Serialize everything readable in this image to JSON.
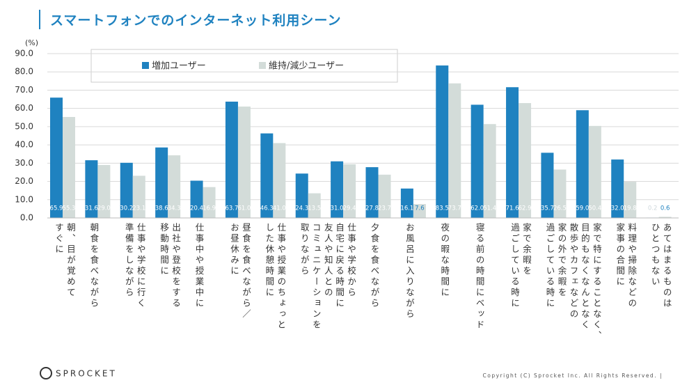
{
  "header": {
    "title": "スマートフォンでのインターネット利用シーン"
  },
  "chart_data": {
    "type": "bar",
    "y_label": "(%)",
    "grid": true,
    "categories": [
      "朝、目が覚めて\nすぐに",
      "朝食を食べながら",
      "仕事や学校に行く\n準備をしながら",
      "出社や登校をする\n移動時間に",
      "仕事中や授業中に",
      "昼食を食べながら／\nお昼休みに",
      "仕事や授業のちょっと\nした休憩時間に",
      "友人や知人との\nコミュニケーションを\n取りながら",
      "仕事や学校から\n自宅に戻る時間に",
      "夕食を食べながら",
      "お風呂に入りながら",
      "夜の暇な時間に",
      "寝る前の時間にベッド",
      "家で余暇を\n過ごしている時に",
      "散歩やカフェなどの\n家の外で余暇を\n過ごしている時に",
      "家で特にすることなく、\n目的もなくなんとなく",
      "料理や掃除などの\n家事の合間に",
      "あてはまるものは\nひとつもない"
    ],
    "series": [
      {
        "name": "増加ユーザー",
        "color": "#1f82c0",
        "values": [
          65.9,
          31.6,
          30.2,
          38.6,
          20.4,
          63.7,
          46.3,
          24.3,
          31.0,
          27.8,
          16.1,
          83.5,
          62.0,
          71.6,
          35.7,
          59.0,
          32.0,
          0.2
        ],
        "value_labels": [
          "65.9",
          "31.6",
          "30.2",
          "38.6",
          "20.4",
          "63.7",
          "46.3",
          "24.3",
          "31.0",
          "27.8",
          "16.1",
          "83.5",
          "62.0",
          "71.6",
          "35.7",
          "59.0",
          "32.0",
          "0.2"
        ]
      },
      {
        "name": "維持/減少ユーザー",
        "color": "#d3dcd9",
        "values": [
          55.3,
          29.0,
          23.1,
          34.3,
          16.9,
          61.0,
          41.0,
          13.5,
          29.4,
          23.7,
          7.6,
          73.7,
          51.4,
          62.9,
          26.5,
          50.4,
          19.8,
          0.6
        ],
        "value_labels": [
          "55.3",
          "29.0",
          "23.1",
          "34.3",
          "16.9",
          "61.0",
          "41.0",
          "13.5",
          "29.4",
          "23.7",
          "7.6",
          "73.7",
          "51.4",
          "62.9",
          "26.5",
          "50.4",
          "19.8",
          "0.6"
        ]
      }
    ],
    "ylim": [
      0,
      90
    ],
    "yticks": [
      {
        "value": 0,
        "label": "0.0"
      },
      {
        "value": 10,
        "label": "10.0"
      },
      {
        "value": 20,
        "label": "20.0"
      },
      {
        "value": 30,
        "label": "30.0"
      },
      {
        "value": 40,
        "label": "40.0"
      },
      {
        "value": 50,
        "label": "50.0"
      },
      {
        "value": 60,
        "label": "60.0"
      },
      {
        "value": 70,
        "label": "70.0"
      },
      {
        "value": 80,
        "label": "80.0"
      },
      {
        "value": 90,
        "label": "90.0"
      }
    ]
  },
  "footer": {
    "logo": "SPROCKET",
    "copyright": "Copyright (C) Sprocket Inc. All Rights Reserved. |"
  }
}
